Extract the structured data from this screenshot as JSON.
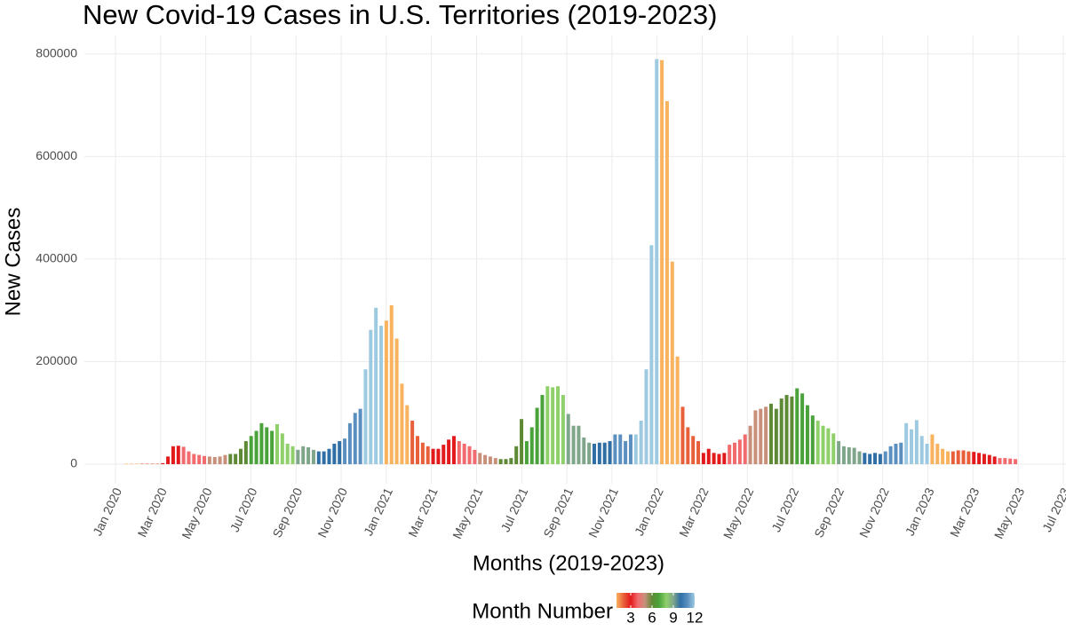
{
  "chart_data": {
    "type": "bar",
    "title": "New Covid-19 Cases in U.S. Territories (2019-2023)",
    "x_label": "Months (2019-2023)",
    "y_label": "New Cases",
    "xlim": [
      2019.885,
      2023.51
    ],
    "xticks": [
      {
        "value": 2020.0,
        "label": "Jan 2020"
      },
      {
        "value": 2020.1667,
        "label": "Mar 2020"
      },
      {
        "value": 2020.3333,
        "label": "May 2020"
      },
      {
        "value": 2020.5,
        "label": "Jul 2020"
      },
      {
        "value": 2020.6667,
        "label": "Sep 2020"
      },
      {
        "value": 2020.8333,
        "label": "Nov 2020"
      },
      {
        "value": 2021.0,
        "label": "Jan 2021"
      },
      {
        "value": 2021.1667,
        "label": "Mar 2021"
      },
      {
        "value": 2021.3333,
        "label": "May 2021"
      },
      {
        "value": 2021.5,
        "label": "Jul 2021"
      },
      {
        "value": 2021.6667,
        "label": "Sep 2021"
      },
      {
        "value": 2021.8333,
        "label": "Nov 2021"
      },
      {
        "value": 2022.0,
        "label": "Jan 2022"
      },
      {
        "value": 2022.1667,
        "label": "Mar 2022"
      },
      {
        "value": 2022.3333,
        "label": "May 2022"
      },
      {
        "value": 2022.5,
        "label": "Jul 2022"
      },
      {
        "value": 2022.6667,
        "label": "Sep 2022"
      },
      {
        "value": 2022.8333,
        "label": "Nov 2022"
      },
      {
        "value": 2023.0,
        "label": "Jan 2023"
      },
      {
        "value": 2023.1667,
        "label": "Mar 2023"
      },
      {
        "value": 2023.3333,
        "label": "May 2023"
      },
      {
        "value": 2023.5,
        "label": "Jul 2023"
      }
    ],
    "ylim": [
      -38000,
      836000
    ],
    "yticks": [
      0,
      200000,
      400000,
      600000,
      800000
    ],
    "grid": true,
    "month_colors": [
      "#f9b25e",
      "#e8603a",
      "#e31a1c",
      "#f26b6e",
      "#c8907a",
      "#5f8a35",
      "#4aa33a",
      "#8fd06a",
      "#7fa68a",
      "#2f6fa5",
      "#5b8fc0",
      "#9ecae1"
    ],
    "legend": {
      "title": "Month Number",
      "lim": [
        1,
        12
      ],
      "ticks": [
        3,
        6,
        9,
        12
      ]
    },
    "x": [
      2020.04,
      2020.0592,
      2020.0784,
      2020.0976,
      2020.1168,
      2020.136,
      2020.1552,
      2020.1744,
      2020.1936,
      2020.2128,
      2020.232,
      2020.2512,
      2020.2704,
      2020.2896,
      2020.3088,
      2020.328,
      2020.3472,
      2020.3664,
      2020.3856,
      2020.4048,
      2020.424,
      2020.4432,
      2020.4624,
      2020.4816,
      2020.5008,
      2020.52,
      2020.5392,
      2020.5584,
      2020.5776,
      2020.5968,
      2020.616,
      2020.6352,
      2020.6544,
      2020.6736,
      2020.6928,
      2020.712,
      2020.7312,
      2020.7504,
      2020.7696,
      2020.7888,
      2020.808,
      2020.8272,
      2020.8464,
      2020.8656,
      2020.8848,
      2020.904,
      2020.9232,
      2020.9424,
      2020.9616,
      2020.9808,
      2021.0,
      2021.0192,
      2021.0384,
      2021.0576,
      2021.0768,
      2021.096,
      2021.1152,
      2021.1344,
      2021.1536,
      2021.1728,
      2021.192,
      2021.2112,
      2021.2304,
      2021.2496,
      2021.2688,
      2021.288,
      2021.3072,
      2021.3264,
      2021.3456,
      2021.3648,
      2021.384,
      2021.4032,
      2021.4224,
      2021.4416,
      2021.4608,
      2021.48,
      2021.4992,
      2021.5184,
      2021.5376,
      2021.5568,
      2021.576,
      2021.5952,
      2021.6144,
      2021.6336,
      2021.6528,
      2021.672,
      2021.6912,
      2021.7104,
      2021.7296,
      2021.7488,
      2021.768,
      2021.7872,
      2021.8064,
      2021.8256,
      2021.8448,
      2021.864,
      2021.8832,
      2021.9024,
      2021.9216,
      2021.9408,
      2021.96,
      2021.9792,
      2021.9984,
      2022.0176,
      2022.0368,
      2022.056,
      2022.0752,
      2022.0944,
      2022.1136,
      2022.1328,
      2022.152,
      2022.1712,
      2022.1904,
      2022.2096,
      2022.2288,
      2022.248,
      2022.2672,
      2022.2864,
      2022.3056,
      2022.3248,
      2022.344,
      2022.3632,
      2022.3824,
      2022.4016,
      2022.4208,
      2022.44,
      2022.4592,
      2022.4784,
      2022.4976,
      2022.5168,
      2022.536,
      2022.5552,
      2022.5744,
      2022.5936,
      2022.6128,
      2022.632,
      2022.6512,
      2022.6704,
      2022.6896,
      2022.7088,
      2022.728,
      2022.7472,
      2022.7664,
      2022.7856,
      2022.8048,
      2022.824,
      2022.8432,
      2022.8624,
      2022.8816,
      2022.9008,
      2022.92,
      2022.9392,
      2022.9584,
      2022.9776,
      2022.9968,
      2023.016,
      2023.0352,
      2023.0544,
      2023.0736,
      2023.0928,
      2023.112,
      2023.1312,
      2023.1504,
      2023.1696,
      2023.1888,
      2023.208,
      2023.2272,
      2023.2464,
      2023.2656,
      2023.2848,
      2023.304,
      2023.3232
    ],
    "values": [
      1000,
      1000,
      1000,
      1000,
      1000,
      1000,
      1000,
      2000,
      15000,
      35000,
      36000,
      34000,
      25000,
      20000,
      18000,
      16000,
      15000,
      14000,
      15000,
      18000,
      20000,
      20000,
      30000,
      45000,
      55000,
      65000,
      80000,
      72000,
      65000,
      78000,
      60000,
      40000,
      35000,
      28000,
      35000,
      33000,
      28000,
      25000,
      25000,
      30000,
      40000,
      45000,
      50000,
      80000,
      100000,
      108000,
      185000,
      262000,
      305000,
      270000,
      280000,
      310000,
      245000,
      157000,
      115000,
      85000,
      55000,
      42000,
      35000,
      30000,
      30000,
      38000,
      48000,
      55000,
      45000,
      40000,
      35000,
      28000,
      22000,
      18000,
      15000,
      12000,
      10000,
      10000,
      12000,
      35000,
      88000,
      45000,
      72000,
      110000,
      135000,
      152000,
      150000,
      152000,
      135000,
      98000,
      75000,
      75000,
      52000,
      42000,
      40000,
      42000,
      42000,
      45000,
      58000,
      58000,
      45000,
      58000,
      58000,
      85000,
      185000,
      427000,
      790000,
      788000,
      708000,
      395000,
      210000,
      112000,
      72000,
      55000,
      45000,
      22000,
      30000,
      22000,
      20000,
      22000,
      38000,
      42000,
      48000,
      58000,
      75000,
      105000,
      108000,
      112000,
      118000,
      108000,
      128000,
      135000,
      132000,
      148000,
      138000,
      115000,
      95000,
      85000,
      75000,
      70000,
      60000,
      45000,
      35000,
      33000,
      32000,
      25000,
      22000,
      20000,
      22000,
      20000,
      25000,
      35000,
      40000,
      42000,
      80000,
      68000,
      86000,
      55000,
      40000,
      58000,
      40000,
      30000,
      25000,
      25000,
      27000,
      27000,
      25000,
      24000,
      22000,
      20000,
      18000,
      15000,
      12000,
      12000,
      11000,
      10000
    ]
  }
}
